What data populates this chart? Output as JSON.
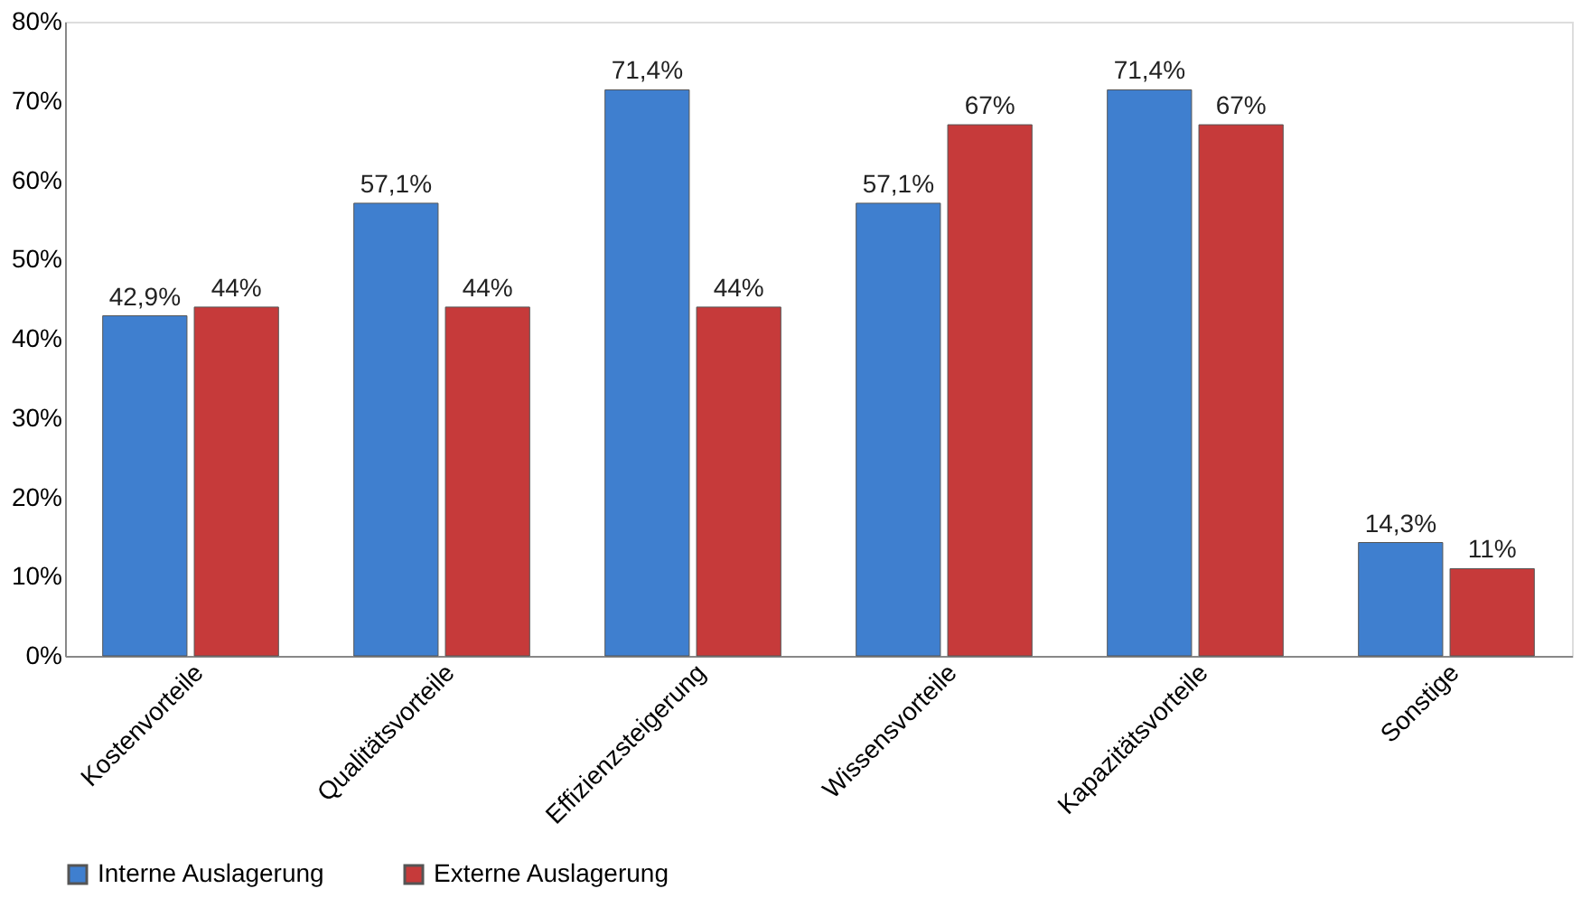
{
  "chart_data": {
    "type": "bar",
    "categories": [
      "Kostenvorteile",
      "Qualitätsvorteile",
      "Effizienzsteigerung",
      "Wissensvorteile",
      "Kapazitätsvorteile",
      "Sonstige"
    ],
    "series": [
      {
        "name": "Interne Auslagerung",
        "color": "#3f7fcf",
        "values": [
          42.9,
          57.1,
          71.4,
          57.1,
          71.4,
          14.3
        ],
        "value_labels": [
          "42,9%",
          "57,1%",
          "71,4%",
          "57,1%",
          "71,4%",
          "14,3%"
        ]
      },
      {
        "name": "Externe Auslagerung",
        "color": "#c63a3a",
        "values": [
          44,
          44,
          44,
          67,
          67,
          11
        ],
        "value_labels": [
          "44%",
          "44%",
          "44%",
          "67%",
          "67%",
          "11%"
        ]
      }
    ],
    "ylim": [
      0,
      80
    ],
    "yticks": [
      {
        "value": 0,
        "label": "0%"
      },
      {
        "value": 10,
        "label": "10%"
      },
      {
        "value": 20,
        "label": "20%"
      },
      {
        "value": 30,
        "label": "30%"
      },
      {
        "value": 40,
        "label": "40%"
      },
      {
        "value": 50,
        "label": "50%"
      },
      {
        "value": 60,
        "label": "60%"
      },
      {
        "value": 70,
        "label": "70%"
      },
      {
        "value": 80,
        "label": "80%"
      }
    ],
    "grid": false,
    "legend": "bottom"
  }
}
